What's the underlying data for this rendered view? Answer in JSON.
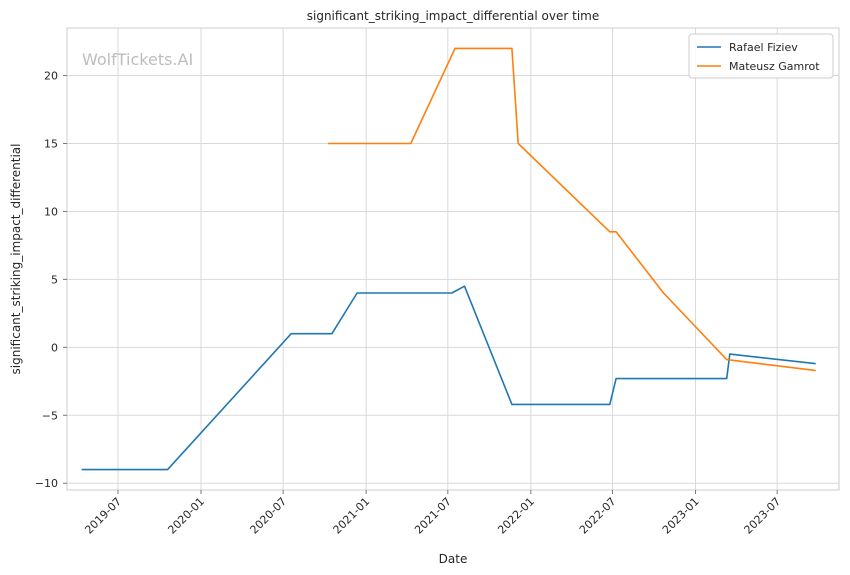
{
  "chart_data": {
    "type": "line",
    "title": "significant_striking_impact_differential over time",
    "xlabel": "Date",
    "ylabel": "significant_striking_impact_differential",
    "watermark": "WolfTickets.AI",
    "x_type": "date",
    "xlim": [
      "2019-03-10",
      "2023-11-15"
    ],
    "ylim": [
      -10.5,
      23.5
    ],
    "x_ticks": [
      "2019-07-01",
      "2020-01-01",
      "2020-07-01",
      "2021-01-01",
      "2021-07-01",
      "2022-01-01",
      "2022-07-01",
      "2023-01-01",
      "2023-07-01"
    ],
    "x_tick_labels": [
      "2019-07",
      "2020-01",
      "2020-07",
      "2021-01",
      "2021-07",
      "2022-01",
      "2022-07",
      "2023-01",
      "2023-07"
    ],
    "y_ticks": [
      -10,
      -5,
      0,
      5,
      10,
      15,
      20
    ],
    "y_tick_labels": [
      "−10",
      "−5",
      "0",
      "5",
      "10",
      "15",
      "20"
    ],
    "grid": true,
    "legend_position": "top-right",
    "series": [
      {
        "name": "Rafael Fiziev",
        "color": "#1f77b4",
        "x": [
          "2019-04-13",
          "2019-10-19",
          "2020-07-19",
          "2020-10-17",
          "2020-12-12",
          "2021-07-10",
          "2021-08-07",
          "2021-11-20",
          "2022-06-25",
          "2022-07-09",
          "2023-03-11",
          "2023-03-18",
          "2023-09-23"
        ],
        "y": [
          -9,
          -9,
          1,
          1,
          4,
          4,
          4.5,
          -4.2,
          -4.2,
          -2.3,
          -2.3,
          -0.5,
          -1.2
        ]
      },
      {
        "name": "Mateusz Gamrot",
        "color": "#ff7f0e",
        "x": [
          "2020-10-10",
          "2021-04-10",
          "2021-07-17",
          "2021-11-20",
          "2021-12-04",
          "2022-06-25",
          "2022-07-09",
          "2022-10-22",
          "2023-03-11",
          "2023-09-23"
        ],
        "y": [
          15,
          15,
          22,
          22,
          15,
          8.5,
          8.5,
          4,
          -0.9,
          -1.7
        ]
      }
    ]
  }
}
